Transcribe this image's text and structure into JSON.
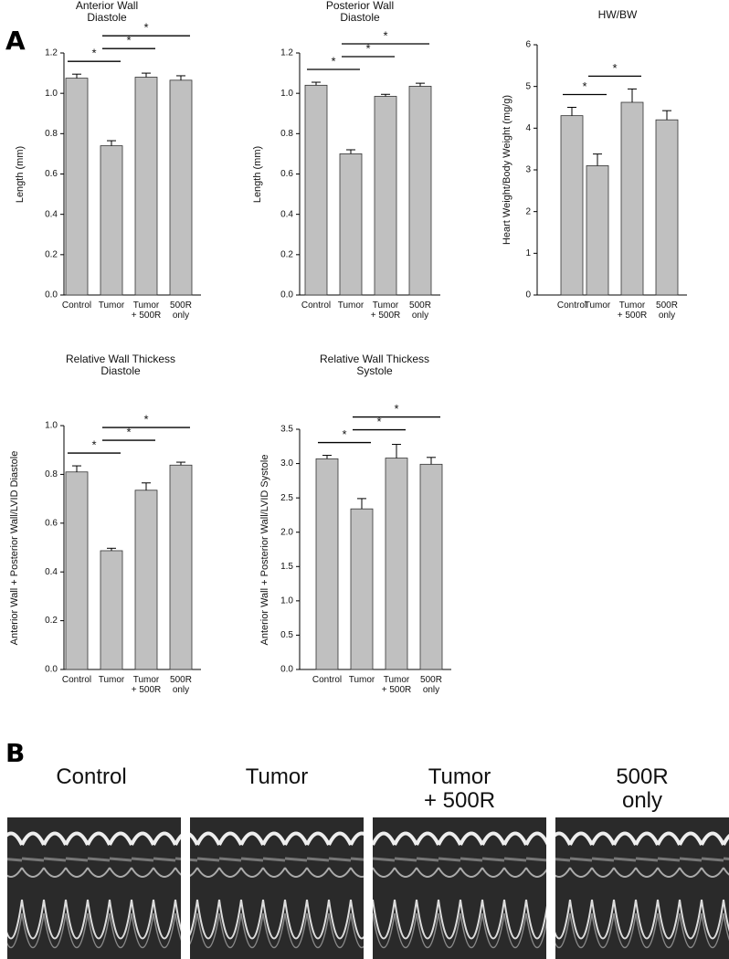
{
  "panel_labels": [
    "A",
    "B"
  ],
  "chart_data": [
    {
      "type": "bar",
      "title": "Anterior Wall\nDiastole",
      "y_label": "Length (mm)",
      "categories": [
        "Control",
        "Tumor",
        "Tumor\n+ 500R",
        "500R\nonly"
      ],
      "values": [
        1.075,
        0.74,
        1.08,
        1.065
      ],
      "errors": [
        0.02,
        0.025,
        0.02,
        0.022
      ],
      "color": "#c0c0c0",
      "ylim": [
        0,
        1.2
      ],
      "yticks": [
        {
          "value": 0,
          "label": "0.0"
        },
        0.2,
        0.4,
        0.6,
        0.8,
        {
          "value": 1,
          "label": "1.0"
        },
        1.2
      ],
      "significance": [
        {
          "from": 0,
          "to": 1,
          "label": "*"
        },
        {
          "from": 1,
          "to": 2,
          "label": "*"
        },
        {
          "from": 1,
          "to": 3,
          "label": "*"
        }
      ]
    },
    {
      "type": "bar",
      "title": "Posterior Wall\nDiastole",
      "y_label": "Length (mm)",
      "categories": [
        "Control",
        "Tumor",
        "Tumor\n+ 500R",
        "500R\nonly"
      ],
      "values": [
        1.04,
        0.7,
        0.985,
        1.035
      ],
      "errors": [
        0.015,
        0.02,
        0.01,
        0.015
      ],
      "color": "#c0c0c0",
      "ylim": [
        0,
        1.2
      ],
      "yticks": [
        {
          "value": 0,
          "label": "0.0"
        },
        0.2,
        0.4,
        0.6,
        0.8,
        {
          "value": 1,
          "label": "1.0"
        },
        1.2
      ],
      "significance": [
        {
          "from": 0,
          "to": 1,
          "label": "*"
        },
        {
          "from": 1,
          "to": 2,
          "label": "*"
        },
        {
          "from": 1,
          "to": 3,
          "label": "*"
        }
      ]
    },
    {
      "type": "bar",
      "title": "HW/BW",
      "y_label": "Heart Weight/Body Weight (mg/g)",
      "categories": [
        "Control",
        "Tumor",
        "Tumor\n+ 500R",
        "500R\nonly"
      ],
      "values": [
        4.3,
        3.1,
        4.62,
        4.2
      ],
      "errors": [
        0.2,
        0.28,
        0.32,
        0.22
      ],
      "color": "#c0c0c0",
      "ylim": [
        0,
        6
      ],
      "yticks": [
        0,
        1,
        2,
        3,
        4,
        5,
        6
      ],
      "significance": [
        {
          "from": 0,
          "to": 1,
          "label": "*"
        },
        {
          "from": 1,
          "to": 2,
          "label": "*"
        }
      ]
    },
    {
      "type": "bar",
      "title": "Relative Wall Thickess\nDiastole",
      "y_label": "Anterior Wall + Posterior Wall/LVID Diastole",
      "categories": [
        "Control",
        "Tumor",
        "Tumor\n+ 500R",
        "500R\nonly"
      ],
      "values": [
        0.81,
        0.487,
        0.735,
        0.838
      ],
      "errors": [
        0.025,
        0.01,
        0.03,
        0.012
      ],
      "color": "#c0c0c0",
      "ylim": [
        0,
        1
      ],
      "yticks": [
        {
          "value": 0,
          "label": "0.0"
        },
        0.2,
        0.4,
        0.6,
        0.8,
        {
          "value": 1,
          "label": "1.0"
        }
      ],
      "significance": [
        {
          "from": 0,
          "to": 1,
          "label": "*"
        },
        {
          "from": 1,
          "to": 2,
          "label": "*"
        },
        {
          "from": 1,
          "to": 3,
          "label": "*"
        }
      ]
    },
    {
      "type": "bar",
      "title": "Relative Wall Thickess\nSystole",
      "y_label": "Anterior Wall + Posterior Wall/LVID Systole",
      "categories": [
        "Control",
        "Tumor",
        "Tumor\n+ 500R",
        "500R\nonly"
      ],
      "values": [
        3.07,
        2.34,
        3.08,
        2.99
      ],
      "errors": [
        0.05,
        0.15,
        0.2,
        0.1
      ],
      "color": "#c0c0c0",
      "ylim": [
        0,
        3.5
      ],
      "yticks": [
        {
          "value": 0,
          "label": "0.0"
        },
        0.5,
        {
          "value": 1,
          "label": "1.0"
        },
        1.5,
        {
          "value": 2,
          "label": "2.0"
        },
        2.5,
        {
          "value": 3,
          "label": "3.0"
        },
        3.5
      ],
      "significance": [
        {
          "from": 0,
          "to": 1,
          "label": "*"
        },
        {
          "from": 1,
          "to": 2,
          "label": "*"
        },
        {
          "from": 1,
          "to": 3,
          "label": "*"
        }
      ]
    }
  ],
  "echo_labels": [
    "Control",
    "Tumor",
    "Tumor\n+ 500R",
    "500R\nonly"
  ]
}
